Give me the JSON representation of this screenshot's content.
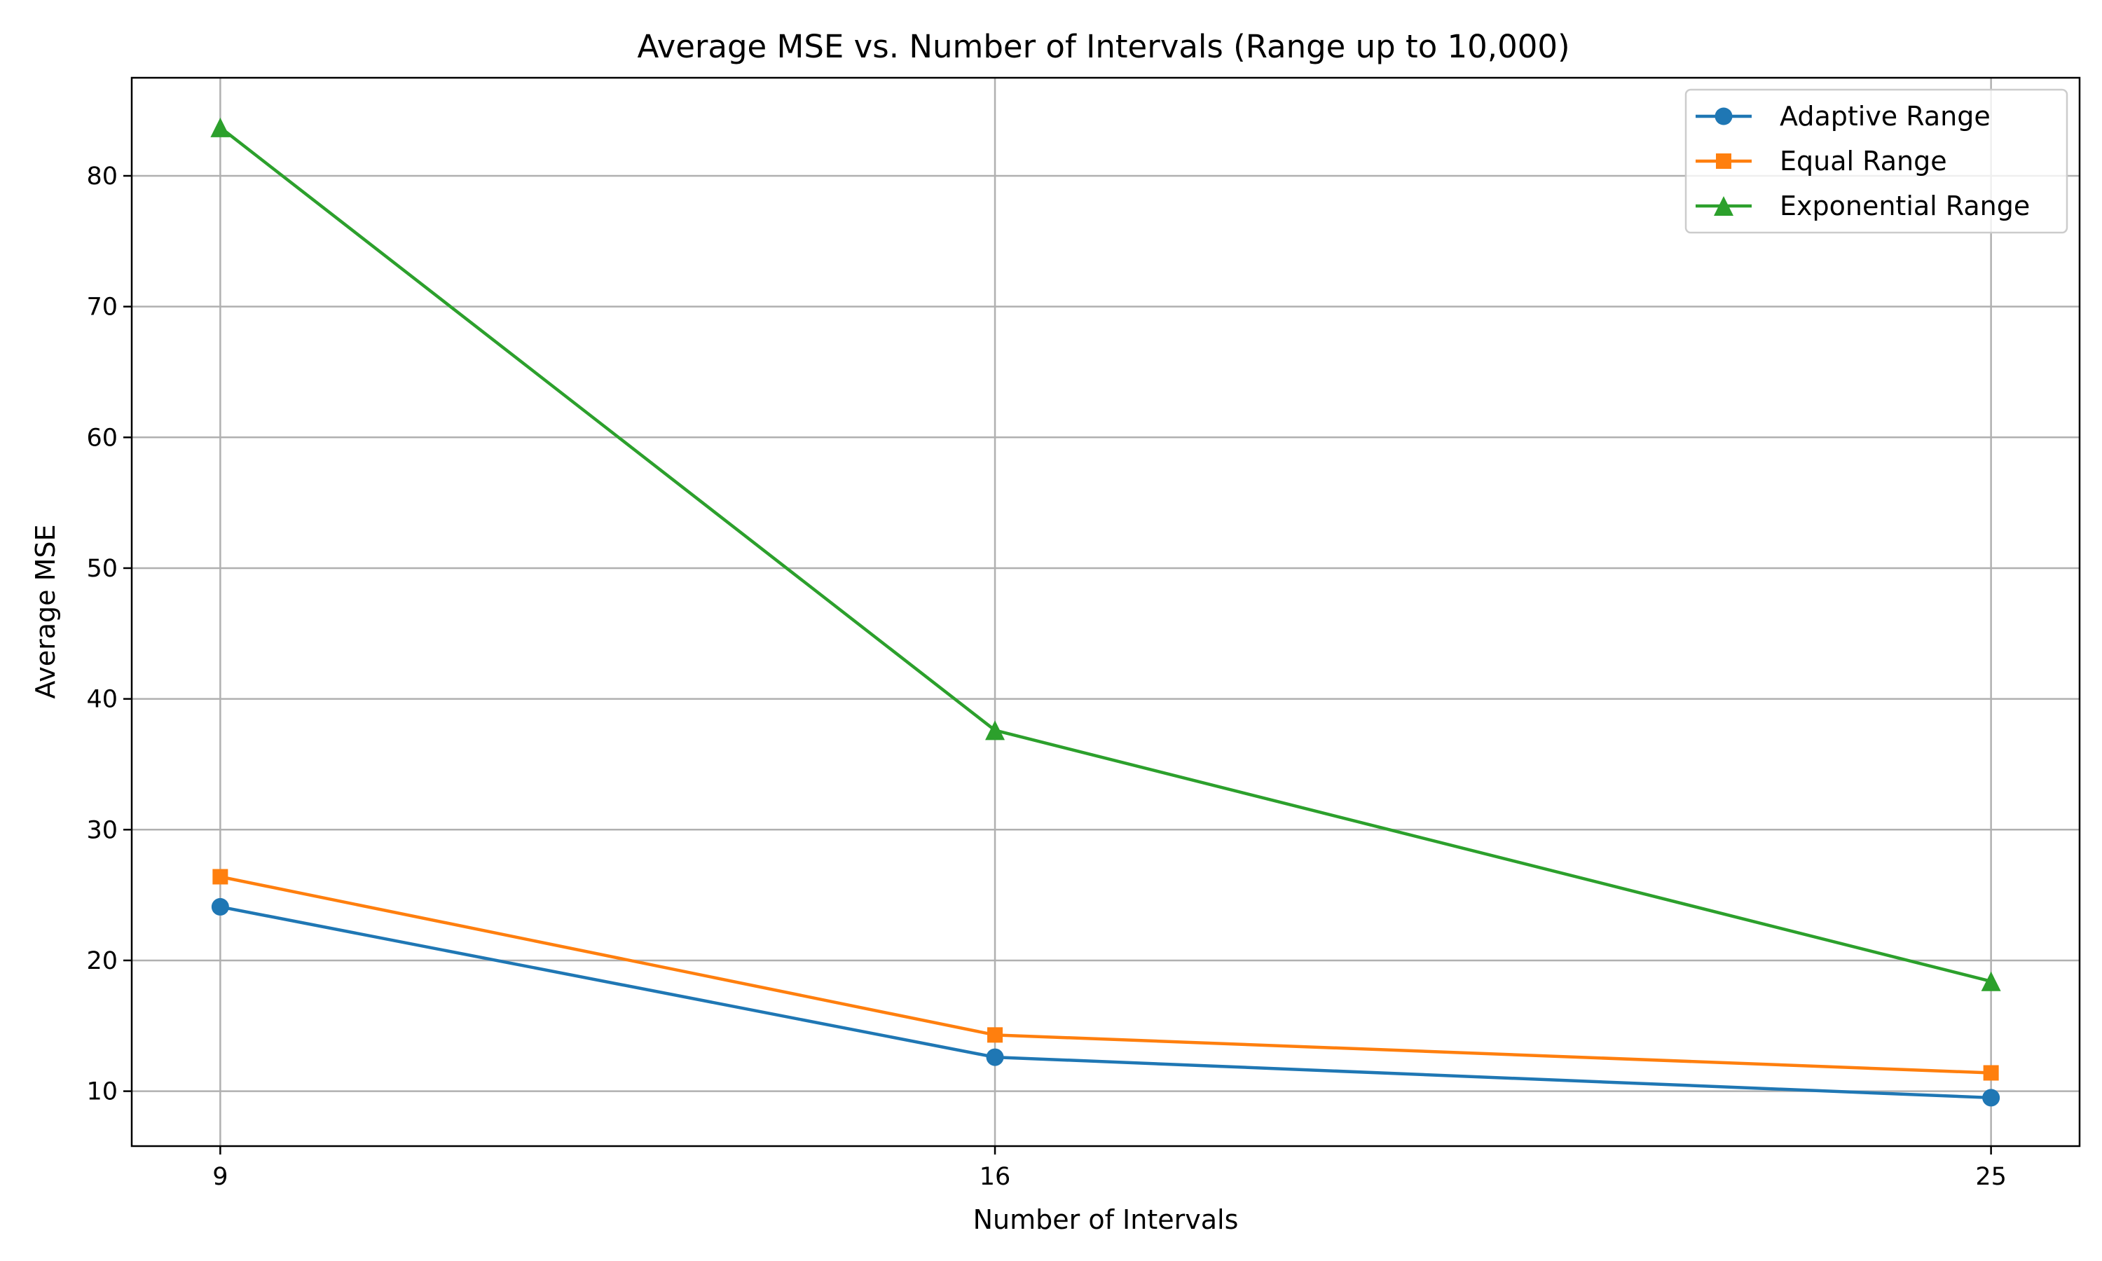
{
  "chart_data": {
    "type": "line",
    "title": "Average MSE vs. Number of Intervals (Range up to 10,000)",
    "xlabel": "Number of Intervals",
    "ylabel": "Average MSE",
    "x": [
      9,
      16,
      25
    ],
    "x_tick_labels": [
      "9",
      "16",
      "25"
    ],
    "xlim": [
      8.2,
      25.8
    ],
    "ylim": [
      5.8,
      87.5
    ],
    "y_ticks": [
      10,
      20,
      30,
      40,
      50,
      60,
      70,
      80
    ],
    "y_tick_labels": [
      "10",
      "20",
      "30",
      "40",
      "50",
      "60",
      "70",
      "80"
    ],
    "grid": true,
    "legend_position": "top-right",
    "series": [
      {
        "name": "Adaptive Range",
        "values": [
          24.1,
          12.6,
          9.5
        ],
        "color": "#1f77b4",
        "marker": "circle"
      },
      {
        "name": "Equal Range",
        "values": [
          26.4,
          14.3,
          11.4
        ],
        "color": "#ff7f0e",
        "marker": "square"
      },
      {
        "name": "Exponential Range",
        "values": [
          83.7,
          37.6,
          18.4
        ],
        "color": "#2ca02c",
        "marker": "triangle"
      }
    ]
  }
}
